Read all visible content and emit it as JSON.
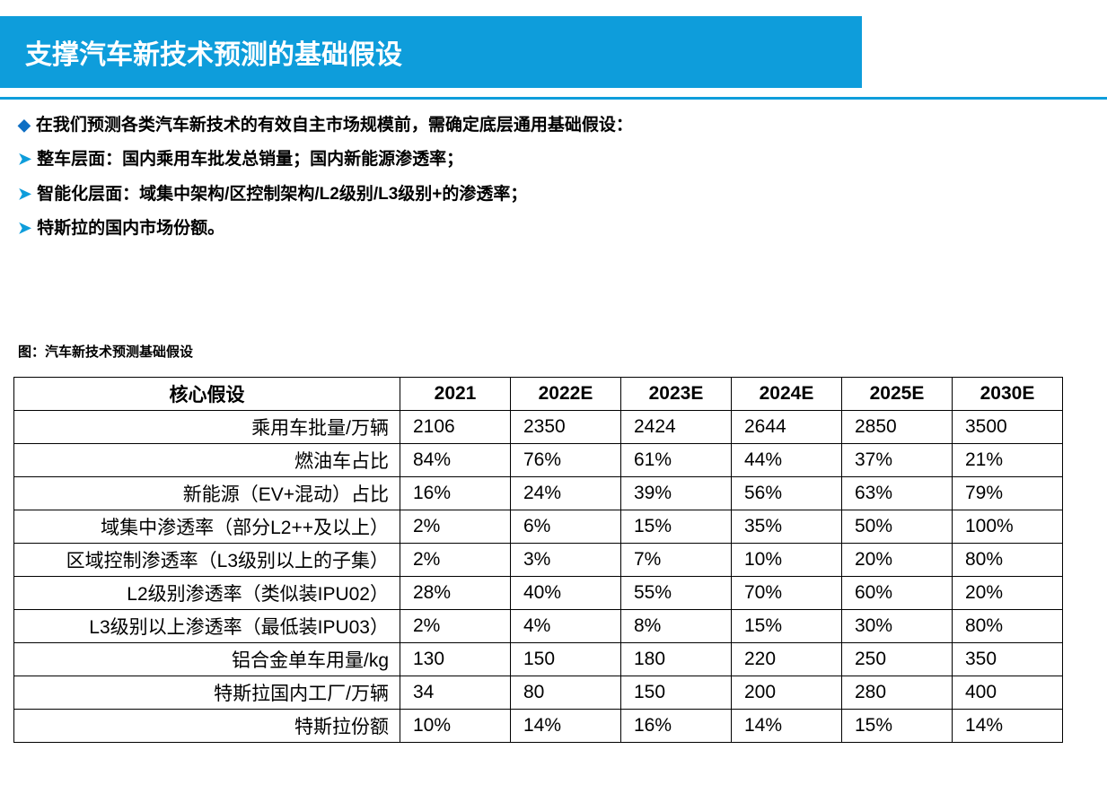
{
  "title": "支撑汽车新技术预测的基础假设",
  "bullets": {
    "b0": "在我们预测各类汽车新技术的有效自主市场规模前，需确定底层通用基础假设：",
    "b1": "整车层面：国内乘用车批发总销量；国内新能源渗透率；",
    "b2": "智能化层面：域集中架构/区控制架构/L2级别/L3级别+的渗透率；",
    "b3": "特斯拉的国内市场份额。"
  },
  "tableCaption": "图：汽车新技术预测基础假设",
  "table": {
    "headerLabel": "核心假设",
    "years": [
      "2021",
      "2022E",
      "2023E",
      "2024E",
      "2025E",
      "2030E"
    ],
    "rows": [
      {
        "label": "乘用车批量/万辆",
        "vals": [
          "2106",
          "2350",
          "2424",
          "2644",
          "2850",
          "3500"
        ]
      },
      {
        "label": "燃油车占比",
        "vals": [
          "84%",
          "76%",
          "61%",
          "44%",
          "37%",
          "21%"
        ]
      },
      {
        "label": "新能源（EV+混动）占比",
        "vals": [
          "16%",
          "24%",
          "39%",
          "56%",
          "63%",
          "79%"
        ]
      },
      {
        "label": "域集中渗透率（部分L2++及以上）",
        "vals": [
          "2%",
          "6%",
          "15%",
          "35%",
          "50%",
          "100%"
        ]
      },
      {
        "label": "区域控制渗透率（L3级别以上的子集）",
        "vals": [
          "2%",
          "3%",
          "7%",
          "10%",
          "20%",
          "80%"
        ]
      },
      {
        "label": "L2级别渗透率（类似装IPU02）",
        "vals": [
          "28%",
          "40%",
          "55%",
          "70%",
          "60%",
          "20%"
        ]
      },
      {
        "label": "L3级别以上渗透率（最低装IPU03）",
        "vals": [
          "2%",
          "4%",
          "8%",
          "15%",
          "30%",
          "80%"
        ]
      },
      {
        "label": "铝合金单车用量/kg",
        "vals": [
          "130",
          "150",
          "180",
          "220",
          "250",
          "350"
        ]
      },
      {
        "label": "特斯拉国内工厂/万辆",
        "vals": [
          "34",
          "80",
          "150",
          "200",
          "280",
          "400"
        ]
      },
      {
        "label": "特斯拉份额",
        "vals": [
          "10%",
          "14%",
          "16%",
          "14%",
          "15%",
          "14%"
        ]
      }
    ]
  },
  "colors": {
    "titleBg": "#0e9ddb",
    "titleFg": "#ffffff",
    "bulletDiamond": "#0e6fc4",
    "bulletChevron": "#0e9ddb",
    "border": "#000000",
    "text": "#000000",
    "background": "#ffffff"
  },
  "fonts": {
    "titleSize": 30,
    "bodySize": 19,
    "captionSize": 15,
    "tableSize": 21
  }
}
